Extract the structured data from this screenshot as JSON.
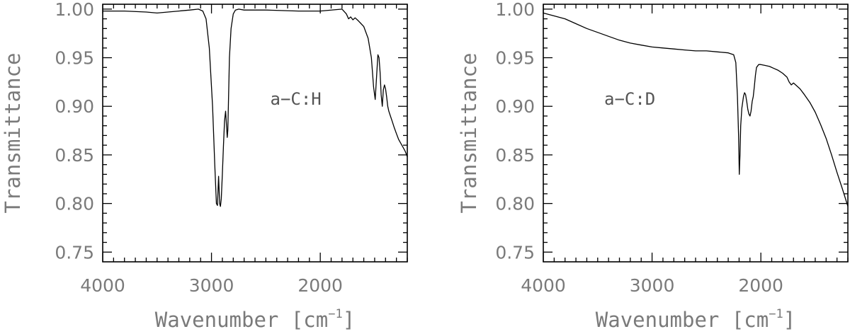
{
  "chart_data": [
    {
      "type": "line",
      "ylabel": "Transmittance",
      "xlabel_main": "Wavenumber [cm",
      "xlabel_sup": "−1",
      "xlabel_end": "]",
      "annotation": "a−C:H",
      "xlim": [
        4000,
        1200
      ],
      "ylim": [
        0.74,
        1.005
      ],
      "x_ticks": [
        4000,
        3000,
        2000
      ],
      "x_tick_labels": [
        "4000",
        "3000",
        "2000"
      ],
      "y_ticks": [
        0.75,
        0.8,
        0.85,
        0.9,
        0.95,
        1.0
      ],
      "y_tick_labels": [
        "0.75",
        "0.80",
        "0.85",
        "0.90",
        "0.95",
        "1.00"
      ],
      "series": [
        {
          "x": [
            4000,
            3800,
            3600,
            3500,
            3400,
            3300,
            3200,
            3120,
            3080,
            3050,
            3020,
            2990,
            2970,
            2955,
            2945,
            2935,
            2925,
            2918,
            2910,
            2900,
            2890,
            2880,
            2870,
            2862,
            2855,
            2850,
            2845,
            2835,
            2820,
            2800,
            2780,
            2750,
            2700,
            2500,
            2200,
            2000,
            1800,
            1760,
            1740,
            1720,
            1700,
            1680,
            1650,
            1600,
            1560,
            1530,
            1510,
            1495,
            1480,
            1470,
            1460,
            1450,
            1440,
            1430,
            1420,
            1410,
            1400,
            1390,
            1380,
            1370,
            1355,
            1340,
            1320,
            1300,
            1280,
            1260,
            1240,
            1220,
            1200
          ],
          "y": [
            0.998,
            0.998,
            0.997,
            0.996,
            0.997,
            0.998,
            0.999,
            1.0,
            0.998,
            0.99,
            0.96,
            0.9,
            0.84,
            0.8,
            0.798,
            0.828,
            0.8,
            0.797,
            0.805,
            0.83,
            0.86,
            0.885,
            0.895,
            0.88,
            0.868,
            0.875,
            0.9,
            0.95,
            0.98,
            0.995,
            0.999,
            1.0,
            0.999,
            0.999,
            0.998,
            0.998,
            1.0,
            0.995,
            0.99,
            0.992,
            0.989,
            0.991,
            0.988,
            0.982,
            0.97,
            0.95,
            0.92,
            0.907,
            0.935,
            0.953,
            0.95,
            0.935,
            0.912,
            0.9,
            0.917,
            0.922,
            0.918,
            0.91,
            0.9,
            0.895,
            0.89,
            0.885,
            0.878,
            0.872,
            0.866,
            0.862,
            0.858,
            0.854,
            0.848
          ]
        }
      ]
    },
    {
      "type": "line",
      "ylabel": "Transmittance",
      "xlabel_main": "Wavenumber [cm",
      "xlabel_sup": "−1",
      "xlabel_end": "]",
      "annotation": "a−C:D",
      "xlim": [
        4000,
        1200
      ],
      "ylim": [
        0.74,
        1.005
      ],
      "x_ticks": [
        4000,
        3000,
        2000
      ],
      "x_tick_labels": [
        "4000",
        "3000",
        "2000"
      ],
      "y_ticks": [
        0.75,
        0.8,
        0.85,
        0.9,
        0.95,
        1.0
      ],
      "y_tick_labels": [
        "0.75",
        "0.80",
        "0.85",
        "0.90",
        "0.95",
        "1.00"
      ],
      "series": [
        {
          "x": [
            4000,
            3900,
            3800,
            3700,
            3600,
            3500,
            3400,
            3300,
            3200,
            3100,
            3000,
            2900,
            2800,
            2700,
            2600,
            2500,
            2400,
            2300,
            2250,
            2230,
            2215,
            2205,
            2198,
            2192,
            2185,
            2175,
            2160,
            2150,
            2140,
            2130,
            2120,
            2110,
            2100,
            2090,
            2080,
            2070,
            2060,
            2050,
            2040,
            2020,
            2000,
            1960,
            1920,
            1880,
            1840,
            1800,
            1760,
            1740,
            1720,
            1700,
            1680,
            1640,
            1600,
            1550,
            1500,
            1450,
            1400,
            1350,
            1300,
            1250,
            1200
          ],
          "y": [
            0.996,
            0.993,
            0.99,
            0.985,
            0.98,
            0.976,
            0.972,
            0.968,
            0.965,
            0.963,
            0.961,
            0.96,
            0.959,
            0.958,
            0.957,
            0.957,
            0.956,
            0.955,
            0.953,
            0.945,
            0.91,
            0.87,
            0.83,
            0.85,
            0.88,
            0.898,
            0.91,
            0.914,
            0.912,
            0.905,
            0.897,
            0.892,
            0.89,
            0.895,
            0.905,
            0.91,
            0.92,
            0.932,
            0.94,
            0.943,
            0.943,
            0.942,
            0.941,
            0.939,
            0.937,
            0.934,
            0.93,
            0.925,
            0.922,
            0.924,
            0.922,
            0.918,
            0.912,
            0.904,
            0.894,
            0.881,
            0.867,
            0.85,
            0.832,
            0.815,
            0.797
          ]
        }
      ]
    }
  ]
}
